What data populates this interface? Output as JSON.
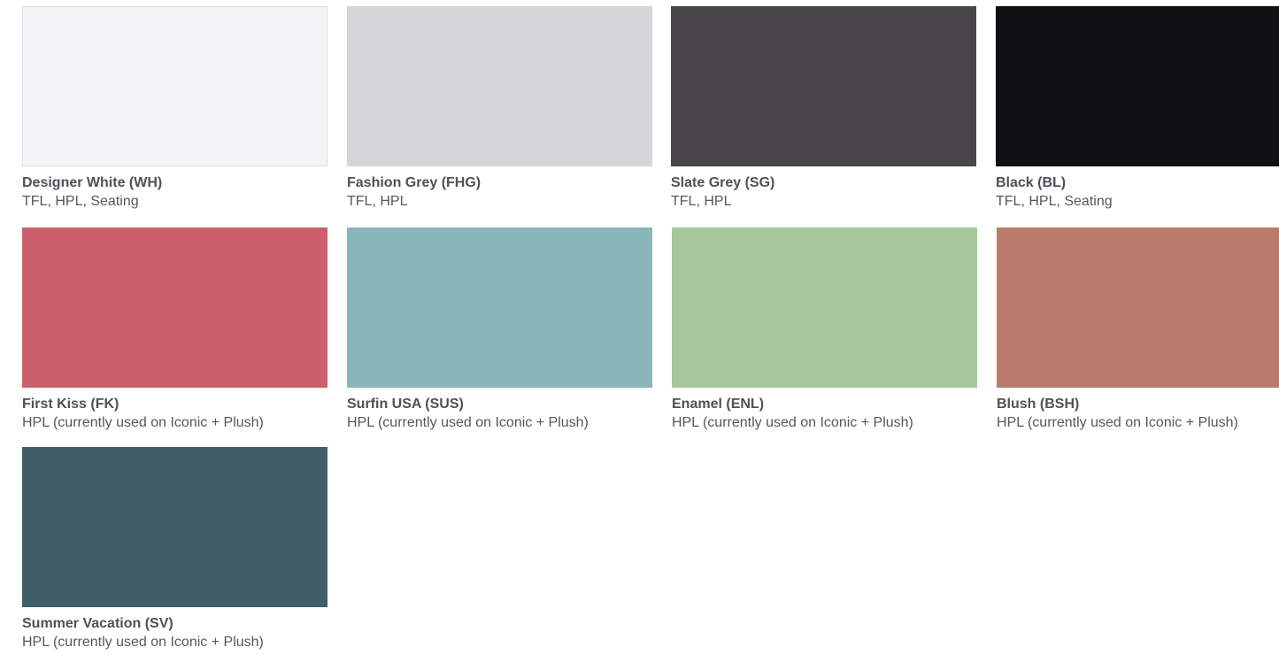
{
  "swatches": [
    {
      "name": "Designer White (WH)",
      "desc": "TFL, HPL, Seating",
      "color": "#f3f4f6"
    },
    {
      "name": "Fashion Grey (FHG)",
      "desc": "TFL, HPL",
      "color": "#d5d6d8"
    },
    {
      "name": "Slate Grey (SG)",
      "desc": "TFL, HPL",
      "color": "#48464a"
    },
    {
      "name": "Black (BL)",
      "desc": "TFL, HPL, Seating",
      "color": "#0f1014"
    },
    {
      "name": "First Kiss (FK)",
      "desc": "HPL (currently used on Iconic + Plush)",
      "color": "#cb5f6b"
    },
    {
      "name": "Surfin USA (SUS)",
      "desc": "HPL (currently used on Iconic + Plush)",
      "color": "#88b6ba"
    },
    {
      "name": "Enamel (ENL)",
      "desc": "HPL (currently used on Iconic + Plush)",
      "color": "#a7c79b"
    },
    {
      "name": "Blush (BSH)",
      "desc": "HPL (currently used on Iconic + Plush)",
      "color": "#bb7c6e"
    },
    {
      "name": "Summer Vacation (SV)",
      "desc": "HPL (currently used on Iconic + Plush)",
      "color": "#3f5e68"
    }
  ]
}
